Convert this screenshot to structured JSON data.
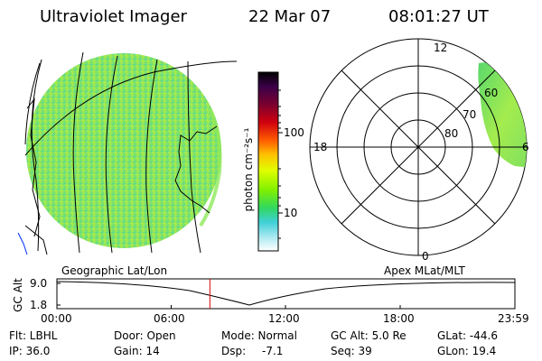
{
  "header": {
    "title": "Ultraviolet Imager",
    "date": "22 Mar 07",
    "time": "08:01:27 UT"
  },
  "colorbar": {
    "unit_label": "photon cm⁻²s⁻¹",
    "ticks": [
      "100",
      "10"
    ],
    "gradient_colors": [
      "#000000",
      "#3a0048",
      "#6a0040",
      "#b0001a",
      "#e82000",
      "#ff7000",
      "#ffd200",
      "#d8ff00",
      "#70ff00",
      "#20e070",
      "#40d0ff",
      "#ffffff"
    ]
  },
  "polar_plot": {
    "mlt_labels": {
      "top": "12",
      "left": "18",
      "right": "6",
      "bottom": "0"
    },
    "lat_labels": [
      "60",
      "70",
      "80"
    ]
  },
  "timeline": {
    "left_title": "Geographic Lat/Lon",
    "right_title": "Apex MLat/MLT",
    "axis_label": "GC Alt",
    "y_ticks": [
      "9.0",
      "1.8"
    ],
    "x_ticks": [
      "00:00",
      "06:00",
      "12:00",
      "18:00",
      "23:59"
    ],
    "current_time_fraction": 0.334,
    "marker_color": "#e00000"
  },
  "info": {
    "flt": "Flt: LBHL",
    "door": "Door: Open",
    "mode": "Mode: Normal",
    "gc_alt": "GC Alt: 5.0 Re",
    "glat": "GLat: -44.6",
    "ip": "IP: 36.0",
    "gain": "Gain: 14",
    "dsp_label": "Dsp:",
    "dsp_value": "-7.1",
    "seq": "Seq: 39",
    "glon": "GLon: 19.4"
  },
  "image_colors": {
    "disk_base": "#8ee85a",
    "disk_light": "#c6f23c",
    "disk_teal": "#52d8a0",
    "grid_line": "#000000"
  }
}
